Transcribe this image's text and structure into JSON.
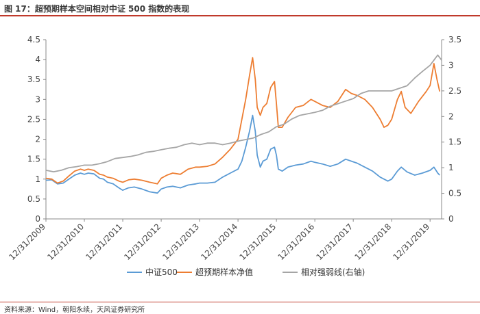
{
  "figure": {
    "title": "图 17：超预期样本空间相对中证 500 指数的表现",
    "source": "资料来源：Wind，朝阳永续，天风证券研究所"
  },
  "chart_data": {
    "type": "line",
    "x_ticks": [
      "12/31/2009",
      "12/31/2010",
      "12/31/2011",
      "12/31/2012",
      "12/31/2013",
      "12/31/2014",
      "12/31/2015",
      "12/31/2016",
      "12/31/2017",
      "12/31/2018",
      "12/31/2019"
    ],
    "y_left": {
      "ylim": [
        0,
        4.5
      ],
      "ticks": [
        "0",
        "0.5",
        "1",
        "1.5",
        "2",
        "2.5",
        "3",
        "3.5",
        "4",
        "4.5"
      ]
    },
    "y_right": {
      "ylim": [
        0,
        3.5
      ],
      "ticks": [
        "0",
        "0.5",
        "1",
        "1.5",
        "2",
        "2.5",
        "3",
        "3.5"
      ]
    },
    "x_range": [
      2010.0,
      2020.3
    ],
    "grid": false,
    "legend_position": "bottom",
    "series": [
      {
        "name": "中证500",
        "axis": "left",
        "color": "#5b9bd5",
        "points": [
          [
            2010.0,
            0.97
          ],
          [
            2010.15,
            0.98
          ],
          [
            2010.3,
            0.88
          ],
          [
            2010.45,
            0.9
          ],
          [
            2010.6,
            1.0
          ],
          [
            2010.75,
            1.1
          ],
          [
            2010.9,
            1.15
          ],
          [
            2011.0,
            1.12
          ],
          [
            2011.1,
            1.15
          ],
          [
            2011.25,
            1.13
          ],
          [
            2011.4,
            1.02
          ],
          [
            2011.5,
            1.0
          ],
          [
            2011.6,
            0.92
          ],
          [
            2011.75,
            0.88
          ],
          [
            2011.9,
            0.78
          ],
          [
            2012.0,
            0.72
          ],
          [
            2012.15,
            0.78
          ],
          [
            2012.3,
            0.8
          ],
          [
            2012.5,
            0.75
          ],
          [
            2012.7,
            0.68
          ],
          [
            2012.9,
            0.65
          ],
          [
            2013.0,
            0.75
          ],
          [
            2013.15,
            0.8
          ],
          [
            2013.3,
            0.82
          ],
          [
            2013.5,
            0.78
          ],
          [
            2013.7,
            0.85
          ],
          [
            2013.9,
            0.88
          ],
          [
            2014.0,
            0.9
          ],
          [
            2014.2,
            0.9
          ],
          [
            2014.4,
            0.92
          ],
          [
            2014.6,
            1.05
          ],
          [
            2014.8,
            1.15
          ],
          [
            2015.0,
            1.25
          ],
          [
            2015.1,
            1.45
          ],
          [
            2015.2,
            1.8
          ],
          [
            2015.3,
            2.2
          ],
          [
            2015.38,
            2.6
          ],
          [
            2015.45,
            2.2
          ],
          [
            2015.5,
            1.6
          ],
          [
            2015.58,
            1.3
          ],
          [
            2015.65,
            1.45
          ],
          [
            2015.75,
            1.5
          ],
          [
            2015.85,
            1.75
          ],
          [
            2015.95,
            1.8
          ],
          [
            2016.0,
            1.6
          ],
          [
            2016.05,
            1.25
          ],
          [
            2016.15,
            1.2
          ],
          [
            2016.3,
            1.3
          ],
          [
            2016.5,
            1.35
          ],
          [
            2016.7,
            1.38
          ],
          [
            2016.9,
            1.45
          ],
          [
            2017.0,
            1.42
          ],
          [
            2017.2,
            1.38
          ],
          [
            2017.4,
            1.32
          ],
          [
            2017.6,
            1.38
          ],
          [
            2017.8,
            1.5
          ],
          [
            2017.95,
            1.45
          ],
          [
            2018.1,
            1.4
          ],
          [
            2018.3,
            1.3
          ],
          [
            2018.5,
            1.2
          ],
          [
            2018.7,
            1.05
          ],
          [
            2018.9,
            0.95
          ],
          [
            2019.0,
            1.0
          ],
          [
            2019.15,
            1.2
          ],
          [
            2019.25,
            1.3
          ],
          [
            2019.4,
            1.18
          ],
          [
            2019.6,
            1.1
          ],
          [
            2019.8,
            1.15
          ],
          [
            2020.0,
            1.22
          ],
          [
            2020.1,
            1.3
          ],
          [
            2020.2,
            1.15
          ],
          [
            2020.25,
            1.1
          ]
        ]
      },
      {
        "name": "超预期样本净值",
        "axis": "left",
        "color": "#ed7d31",
        "points": [
          [
            2010.0,
            1.02
          ],
          [
            2010.15,
            1.0
          ],
          [
            2010.3,
            0.9
          ],
          [
            2010.45,
            0.95
          ],
          [
            2010.6,
            1.08
          ],
          [
            2010.75,
            1.2
          ],
          [
            2010.9,
            1.25
          ],
          [
            2011.0,
            1.22
          ],
          [
            2011.1,
            1.25
          ],
          [
            2011.25,
            1.22
          ],
          [
            2011.4,
            1.12
          ],
          [
            2011.5,
            1.1
          ],
          [
            2011.6,
            1.05
          ],
          [
            2011.75,
            1.02
          ],
          [
            2011.9,
            0.95
          ],
          [
            2012.0,
            0.92
          ],
          [
            2012.15,
            0.98
          ],
          [
            2012.3,
            1.0
          ],
          [
            2012.5,
            0.97
          ],
          [
            2012.7,
            0.92
          ],
          [
            2012.9,
            0.88
          ],
          [
            2013.0,
            1.02
          ],
          [
            2013.15,
            1.1
          ],
          [
            2013.3,
            1.15
          ],
          [
            2013.5,
            1.12
          ],
          [
            2013.7,
            1.25
          ],
          [
            2013.9,
            1.3
          ],
          [
            2014.0,
            1.3
          ],
          [
            2014.2,
            1.32
          ],
          [
            2014.4,
            1.38
          ],
          [
            2014.6,
            1.55
          ],
          [
            2014.8,
            1.75
          ],
          [
            2015.0,
            2.0
          ],
          [
            2015.1,
            2.5
          ],
          [
            2015.2,
            3.0
          ],
          [
            2015.3,
            3.6
          ],
          [
            2015.38,
            4.05
          ],
          [
            2015.45,
            3.5
          ],
          [
            2015.5,
            2.8
          ],
          [
            2015.58,
            2.6
          ],
          [
            2015.65,
            2.8
          ],
          [
            2015.75,
            2.9
          ],
          [
            2015.85,
            3.3
          ],
          [
            2015.95,
            3.45
          ],
          [
            2016.0,
            2.9
          ],
          [
            2016.05,
            2.3
          ],
          [
            2016.15,
            2.3
          ],
          [
            2016.3,
            2.55
          ],
          [
            2016.5,
            2.8
          ],
          [
            2016.7,
            2.85
          ],
          [
            2016.9,
            3.0
          ],
          [
            2017.0,
            2.95
          ],
          [
            2017.2,
            2.85
          ],
          [
            2017.4,
            2.8
          ],
          [
            2017.6,
            2.95
          ],
          [
            2017.8,
            3.25
          ],
          [
            2017.95,
            3.15
          ],
          [
            2018.1,
            3.1
          ],
          [
            2018.3,
            3.0
          ],
          [
            2018.5,
            2.8
          ],
          [
            2018.7,
            2.5
          ],
          [
            2018.8,
            2.3
          ],
          [
            2018.9,
            2.35
          ],
          [
            2019.0,
            2.5
          ],
          [
            2019.15,
            3.0
          ],
          [
            2019.25,
            3.2
          ],
          [
            2019.35,
            2.8
          ],
          [
            2019.5,
            2.65
          ],
          [
            2019.7,
            2.95
          ],
          [
            2019.9,
            3.2
          ],
          [
            2020.0,
            3.35
          ],
          [
            2020.1,
            3.9
          ],
          [
            2020.18,
            3.5
          ],
          [
            2020.25,
            3.2
          ]
        ]
      },
      {
        "name": "相对强弱线(右轴)",
        "axis": "right",
        "color": "#a5a5a5",
        "points": [
          [
            2010.0,
            0.95
          ],
          [
            2010.2,
            0.92
          ],
          [
            2010.4,
            0.95
          ],
          [
            2010.6,
            1.0
          ],
          [
            2010.8,
            1.02
          ],
          [
            2011.0,
            1.05
          ],
          [
            2011.2,
            1.05
          ],
          [
            2011.4,
            1.08
          ],
          [
            2011.6,
            1.12
          ],
          [
            2011.8,
            1.18
          ],
          [
            2012.0,
            1.2
          ],
          [
            2012.2,
            1.22
          ],
          [
            2012.4,
            1.25
          ],
          [
            2012.6,
            1.3
          ],
          [
            2012.8,
            1.32
          ],
          [
            2013.0,
            1.35
          ],
          [
            2013.2,
            1.38
          ],
          [
            2013.4,
            1.4
          ],
          [
            2013.6,
            1.45
          ],
          [
            2013.8,
            1.48
          ],
          [
            2014.0,
            1.45
          ],
          [
            2014.2,
            1.48
          ],
          [
            2014.4,
            1.48
          ],
          [
            2014.6,
            1.45
          ],
          [
            2014.8,
            1.48
          ],
          [
            2015.0,
            1.52
          ],
          [
            2015.2,
            1.55
          ],
          [
            2015.4,
            1.58
          ],
          [
            2015.6,
            1.65
          ],
          [
            2015.8,
            1.7
          ],
          [
            2016.0,
            1.8
          ],
          [
            2016.2,
            1.85
          ],
          [
            2016.4,
            1.95
          ],
          [
            2016.6,
            2.02
          ],
          [
            2016.8,
            2.05
          ],
          [
            2017.0,
            2.08
          ],
          [
            2017.2,
            2.12
          ],
          [
            2017.4,
            2.2
          ],
          [
            2017.6,
            2.25
          ],
          [
            2017.8,
            2.3
          ],
          [
            2018.0,
            2.35
          ],
          [
            2018.2,
            2.45
          ],
          [
            2018.4,
            2.5
          ],
          [
            2018.6,
            2.5
          ],
          [
            2018.8,
            2.5
          ],
          [
            2019.0,
            2.5
          ],
          [
            2019.2,
            2.55
          ],
          [
            2019.4,
            2.6
          ],
          [
            2019.6,
            2.75
          ],
          [
            2019.8,
            2.88
          ],
          [
            2020.0,
            3.0
          ],
          [
            2020.1,
            3.1
          ],
          [
            2020.2,
            3.2
          ],
          [
            2020.3,
            3.1
          ]
        ]
      }
    ]
  }
}
